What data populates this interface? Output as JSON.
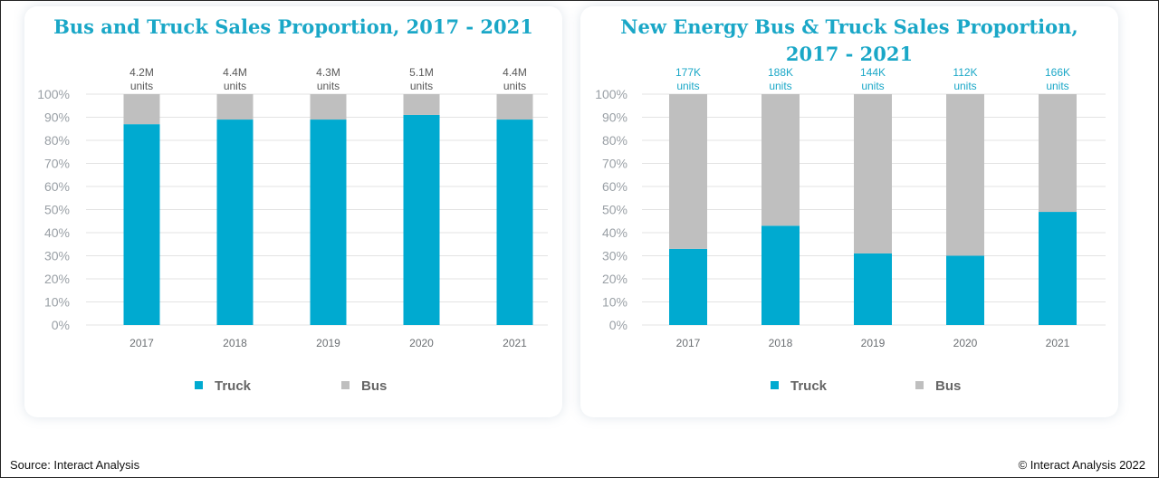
{
  "source": "Source: Interact Analysis",
  "copyright": "© Interact Analysis 2022",
  "colors": {
    "truck": "#00aad0",
    "bus": "#bfbfbf",
    "title": "#1aa7c7",
    "grid": "#e3e3e3"
  },
  "chart_data": [
    {
      "type": "bar",
      "stacked": true,
      "title": "Bus and Truck Sales Proportion, 2017 - 2021",
      "categories": [
        "2017",
        "2018",
        "2019",
        "2020",
        "2021"
      ],
      "series": [
        {
          "name": "Truck",
          "values": [
            87,
            89,
            89,
            91,
            89
          ]
        },
        {
          "name": "Bus",
          "values": [
            13,
            11,
            11,
            9,
            11
          ]
        }
      ],
      "total_labels": [
        [
          "4.2M",
          "units"
        ],
        [
          "4.4M",
          "units"
        ],
        [
          "4.3M",
          "units"
        ],
        [
          "5.1M",
          "units"
        ],
        [
          "4.4M",
          "units"
        ]
      ],
      "total_label_color": "#595959",
      "y_ticks": [
        "0%",
        "10%",
        "20%",
        "30%",
        "40%",
        "50%",
        "60%",
        "70%",
        "80%",
        "90%",
        "100%"
      ],
      "ylim": [
        0,
        100
      ],
      "grid": true,
      "legend_position": "bottom"
    },
    {
      "type": "bar",
      "stacked": true,
      "title": "New Energy Bus & Truck Sales Proportion, 2017 - 2021",
      "categories": [
        "2017",
        "2018",
        "2019",
        "2020",
        "2021"
      ],
      "series": [
        {
          "name": "Truck",
          "values": [
            33,
            43,
            31,
            30,
            49
          ]
        },
        {
          "name": "Bus",
          "values": [
            67,
            57,
            69,
            70,
            51
          ]
        }
      ],
      "total_labels": [
        [
          "177K",
          "units"
        ],
        [
          "188K",
          "units"
        ],
        [
          "144K",
          "units"
        ],
        [
          "112K",
          "units"
        ],
        [
          "166K",
          "units"
        ]
      ],
      "total_label_color": "#1aa7c7",
      "y_ticks": [
        "0%",
        "10%",
        "20%",
        "30%",
        "40%",
        "50%",
        "60%",
        "70%",
        "80%",
        "90%",
        "100%"
      ],
      "ylim": [
        0,
        100
      ],
      "grid": true,
      "legend_position": "bottom"
    }
  ]
}
